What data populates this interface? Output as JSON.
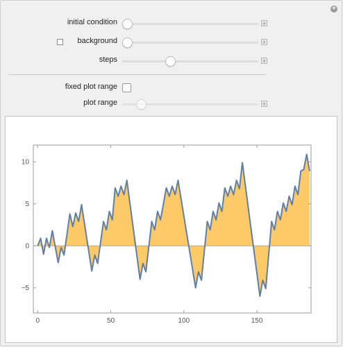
{
  "controls": {
    "initial_condition": {
      "label": "initial condition",
      "value": 0.0
    },
    "background": {
      "label": "background",
      "checked": false,
      "value": 0.0
    },
    "steps": {
      "label": "steps",
      "value": 0.35
    },
    "fixed_plot_range": {
      "label": "fixed plot range",
      "checked": false
    },
    "plot_range": {
      "label": "plot range",
      "value": 0.1
    }
  },
  "icons": {
    "corner": "plus-circle-icon",
    "add": "plus-square-icon"
  },
  "colors": {
    "line": "#5f7ea8",
    "fill": "#fdc75f",
    "axis": "#888888",
    "frame": "#c4c4c4"
  },
  "chart_data": {
    "type": "area",
    "xlim": [
      -3,
      187
    ],
    "ylim": [
      -8,
      12
    ],
    "xticks": [
      0,
      50,
      100,
      150
    ],
    "yticks": [
      -5,
      0,
      5,
      10
    ],
    "xtick_labels": [
      "0",
      "50",
      "100",
      "150"
    ],
    "ytick_labels": [
      "-5",
      "0",
      "5",
      "10"
    ],
    "series": [
      {
        "points": [
          [
            0,
            0
          ],
          [
            2,
            0.9
          ],
          [
            4,
            -1
          ],
          [
            6,
            0.9
          ],
          [
            8,
            -0.2
          ],
          [
            10,
            1.8
          ],
          [
            14,
            -2
          ],
          [
            16,
            -0.2
          ],
          [
            18,
            -1.1
          ],
          [
            22,
            3.8
          ],
          [
            24,
            2.3
          ],
          [
            26,
            3.9
          ],
          [
            28,
            2.9
          ],
          [
            30,
            4.9
          ],
          [
            37,
            -3
          ],
          [
            39,
            -1.1
          ],
          [
            41,
            -2.1
          ],
          [
            45,
            2.9
          ],
          [
            47,
            1.9
          ],
          [
            49,
            4.1
          ],
          [
            51,
            3.1
          ],
          [
            53,
            6.9
          ],
          [
            55,
            5.9
          ],
          [
            57,
            7.1
          ],
          [
            59,
            6.1
          ],
          [
            61,
            7.8
          ],
          [
            70,
            -4
          ],
          [
            72,
            -2.1
          ],
          [
            74,
            -3.1
          ],
          [
            78,
            2.9
          ],
          [
            80,
            1.9
          ],
          [
            82,
            4.1
          ],
          [
            84,
            3.1
          ],
          [
            88,
            6.9
          ],
          [
            90,
            5.9
          ],
          [
            92,
            7.1
          ],
          [
            94,
            6.1
          ],
          [
            96,
            7.8
          ],
          [
            108,
            -5
          ],
          [
            110,
            -3.1
          ],
          [
            112,
            -4.1
          ],
          [
            116,
            2.9
          ],
          [
            118,
            1.9
          ],
          [
            120,
            4.1
          ],
          [
            122,
            3.1
          ],
          [
            124,
            5.1
          ],
          [
            126,
            4.1
          ],
          [
            128,
            6.9
          ],
          [
            130,
            5.9
          ],
          [
            132,
            7.1
          ],
          [
            134,
            6.1
          ],
          [
            136,
            7.8
          ],
          [
            138,
            6.8
          ],
          [
            140,
            9.9
          ],
          [
            152,
            -6
          ],
          [
            154,
            -4.1
          ],
          [
            156,
            -5.1
          ],
          [
            160,
            2.9
          ],
          [
            162,
            1.9
          ],
          [
            164,
            4.1
          ],
          [
            166,
            3.1
          ],
          [
            168,
            5.1
          ],
          [
            170,
            4.1
          ],
          [
            172,
            5.9
          ],
          [
            174,
            4.9
          ],
          [
            176,
            7.1
          ],
          [
            178,
            6.1
          ],
          [
            180,
            8.9
          ],
          [
            182,
            9.1
          ],
          [
            184,
            10.9
          ],
          [
            186,
            8.9
          ]
        ]
      }
    ]
  }
}
